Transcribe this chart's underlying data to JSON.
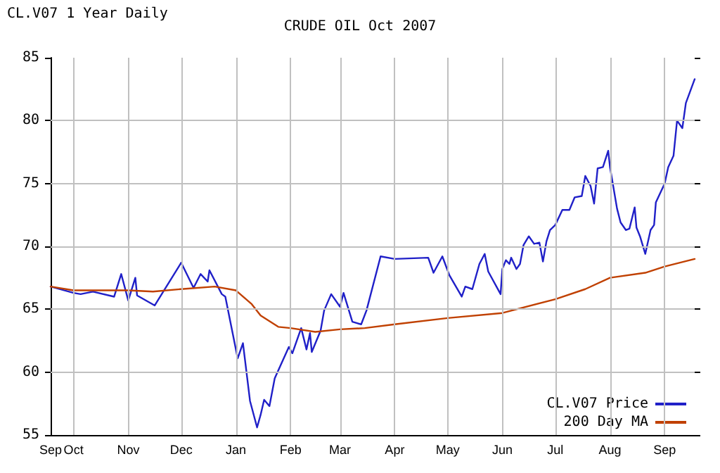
{
  "chart_data": {
    "type": "line",
    "title": "CRUDE OIL Oct 2007",
    "subtitle": "CL.V07 1 Year Daily",
    "xlim": [
      "2006-09-18",
      "2007-09-18"
    ],
    "xticks": [
      {
        "value": "2006-09-18",
        "label": "Sep"
      },
      {
        "value": "2006-10-01",
        "label": "Oct"
      },
      {
        "value": "2006-11-01",
        "label": "Nov"
      },
      {
        "value": "2006-12-01",
        "label": "Dec"
      },
      {
        "value": "2007-01-01",
        "label": "Jan"
      },
      {
        "value": "2007-02-01",
        "label": "Feb"
      },
      {
        "value": "2007-03-01",
        "label": "Mar"
      },
      {
        "value": "2007-04-01",
        "label": "Apr"
      },
      {
        "value": "2007-05-01",
        "label": "May"
      },
      {
        "value": "2007-06-01",
        "label": "Jun"
      },
      {
        "value": "2007-07-01",
        "label": "Jul"
      },
      {
        "value": "2007-08-01",
        "label": "Aug"
      },
      {
        "value": "2007-09-01",
        "label": "Sep"
      }
    ],
    "ylim": [
      55,
      85
    ],
    "yticks": [
      55,
      60,
      65,
      70,
      75,
      80,
      85
    ],
    "grid": true,
    "legend": "bottom right",
    "marker": "none",
    "line_style": "solid",
    "series": [
      {
        "name": "CL.V07 Price",
        "color": "#2020c8",
        "x": [
          "2006-09-18",
          "2006-10-01",
          "2006-10-05",
          "2006-10-12",
          "2006-10-24",
          "2006-10-28",
          "2006-11-01",
          "2006-11-05",
          "2006-11-06",
          "2006-11-16",
          "2006-12-01",
          "2006-12-08",
          "2006-12-12",
          "2006-12-16",
          "2006-12-17",
          "2006-12-24",
          "2006-12-26",
          "2007-01-02",
          "2007-01-05",
          "2007-01-09",
          "2007-01-13",
          "2007-01-15",
          "2007-01-17",
          "2007-01-20",
          "2007-01-23",
          "2007-01-31",
          "2007-02-02",
          "2007-02-07",
          "2007-02-10",
          "2007-02-12",
          "2007-02-13",
          "2007-02-18",
          "2007-02-20",
          "2007-02-24",
          "2007-03-01",
          "2007-03-03",
          "2007-03-08",
          "2007-03-13",
          "2007-03-16",
          "2007-03-24",
          "2007-04-01",
          "2007-04-20",
          "2007-04-23",
          "2007-04-28",
          "2007-05-02",
          "2007-05-09",
          "2007-05-11",
          "2007-05-15",
          "2007-05-19",
          "2007-05-22",
          "2007-05-24",
          "2007-05-31",
          "2007-06-01",
          "2007-06-03",
          "2007-06-05",
          "2007-06-06",
          "2007-06-09",
          "2007-06-11",
          "2007-06-13",
          "2007-06-16",
          "2007-06-19",
          "2007-06-22",
          "2007-06-24",
          "2007-06-26",
          "2007-06-28",
          "2007-07-01",
          "2007-07-05",
          "2007-07-09",
          "2007-07-12",
          "2007-07-16",
          "2007-07-18",
          "2007-07-21",
          "2007-07-23",
          "2007-07-25",
          "2007-07-28",
          "2007-07-31",
          "2007-08-01",
          "2007-08-05",
          "2007-08-07",
          "2007-08-10",
          "2007-08-12",
          "2007-08-15",
          "2007-08-16",
          "2007-08-18",
          "2007-08-21",
          "2007-08-24",
          "2007-08-26",
          "2007-08-27",
          "2007-09-01",
          "2007-09-03",
          "2007-09-06",
          "2007-09-08",
          "2007-09-11",
          "2007-09-13",
          "2007-09-18"
        ],
        "values": [
          66.8,
          66.3,
          66.2,
          66.4,
          66.0,
          67.8,
          65.7,
          67.5,
          66.1,
          65.3,
          68.7,
          66.7,
          67.8,
          67.2,
          68.1,
          66.2,
          66.0,
          61.1,
          62.3,
          57.7,
          55.6,
          56.6,
          57.8,
          57.3,
          59.5,
          62.0,
          61.5,
          63.5,
          61.8,
          63.1,
          61.6,
          63.3,
          64.9,
          66.2,
          65.2,
          66.3,
          64.0,
          63.8,
          64.9,
          69.2,
          69.0,
          69.1,
          67.9,
          69.2,
          67.7,
          66.0,
          66.8,
          66.6,
          68.6,
          69.4,
          68.0,
          66.2,
          68.2,
          68.9,
          68.6,
          69.1,
          68.2,
          68.6,
          70.1,
          70.8,
          70.2,
          70.3,
          68.8,
          70.4,
          71.3,
          71.7,
          72.9,
          72.9,
          73.9,
          74.0,
          75.6,
          74.8,
          73.4,
          76.2,
          76.3,
          77.6,
          76.3,
          73.0,
          71.9,
          71.3,
          71.4,
          73.1,
          71.5,
          70.8,
          69.4,
          71.3,
          71.7,
          73.5,
          75.0,
          76.3,
          77.2,
          80.0,
          79.4,
          81.4,
          83.3
        ]
      },
      {
        "name": "200 Day MA",
        "color": "#c04000",
        "x": [
          "2006-09-18",
          "2006-10-01",
          "2006-11-01",
          "2006-11-15",
          "2006-12-01",
          "2006-12-20",
          "2007-01-01",
          "2007-01-10",
          "2007-01-15",
          "2007-01-25",
          "2007-02-01",
          "2007-02-15",
          "2007-03-01",
          "2007-03-15",
          "2007-04-01",
          "2007-05-01",
          "2007-06-01",
          "2007-07-01",
          "2007-07-18",
          "2007-08-01",
          "2007-08-21",
          "2007-09-01",
          "2007-09-18"
        ],
        "values": [
          66.8,
          66.5,
          66.5,
          66.4,
          66.6,
          66.8,
          66.5,
          65.4,
          64.5,
          63.6,
          63.5,
          63.2,
          63.4,
          63.5,
          63.8,
          64.3,
          64.7,
          65.8,
          66.6,
          67.5,
          67.9,
          68.4,
          69.0
        ]
      }
    ]
  }
}
